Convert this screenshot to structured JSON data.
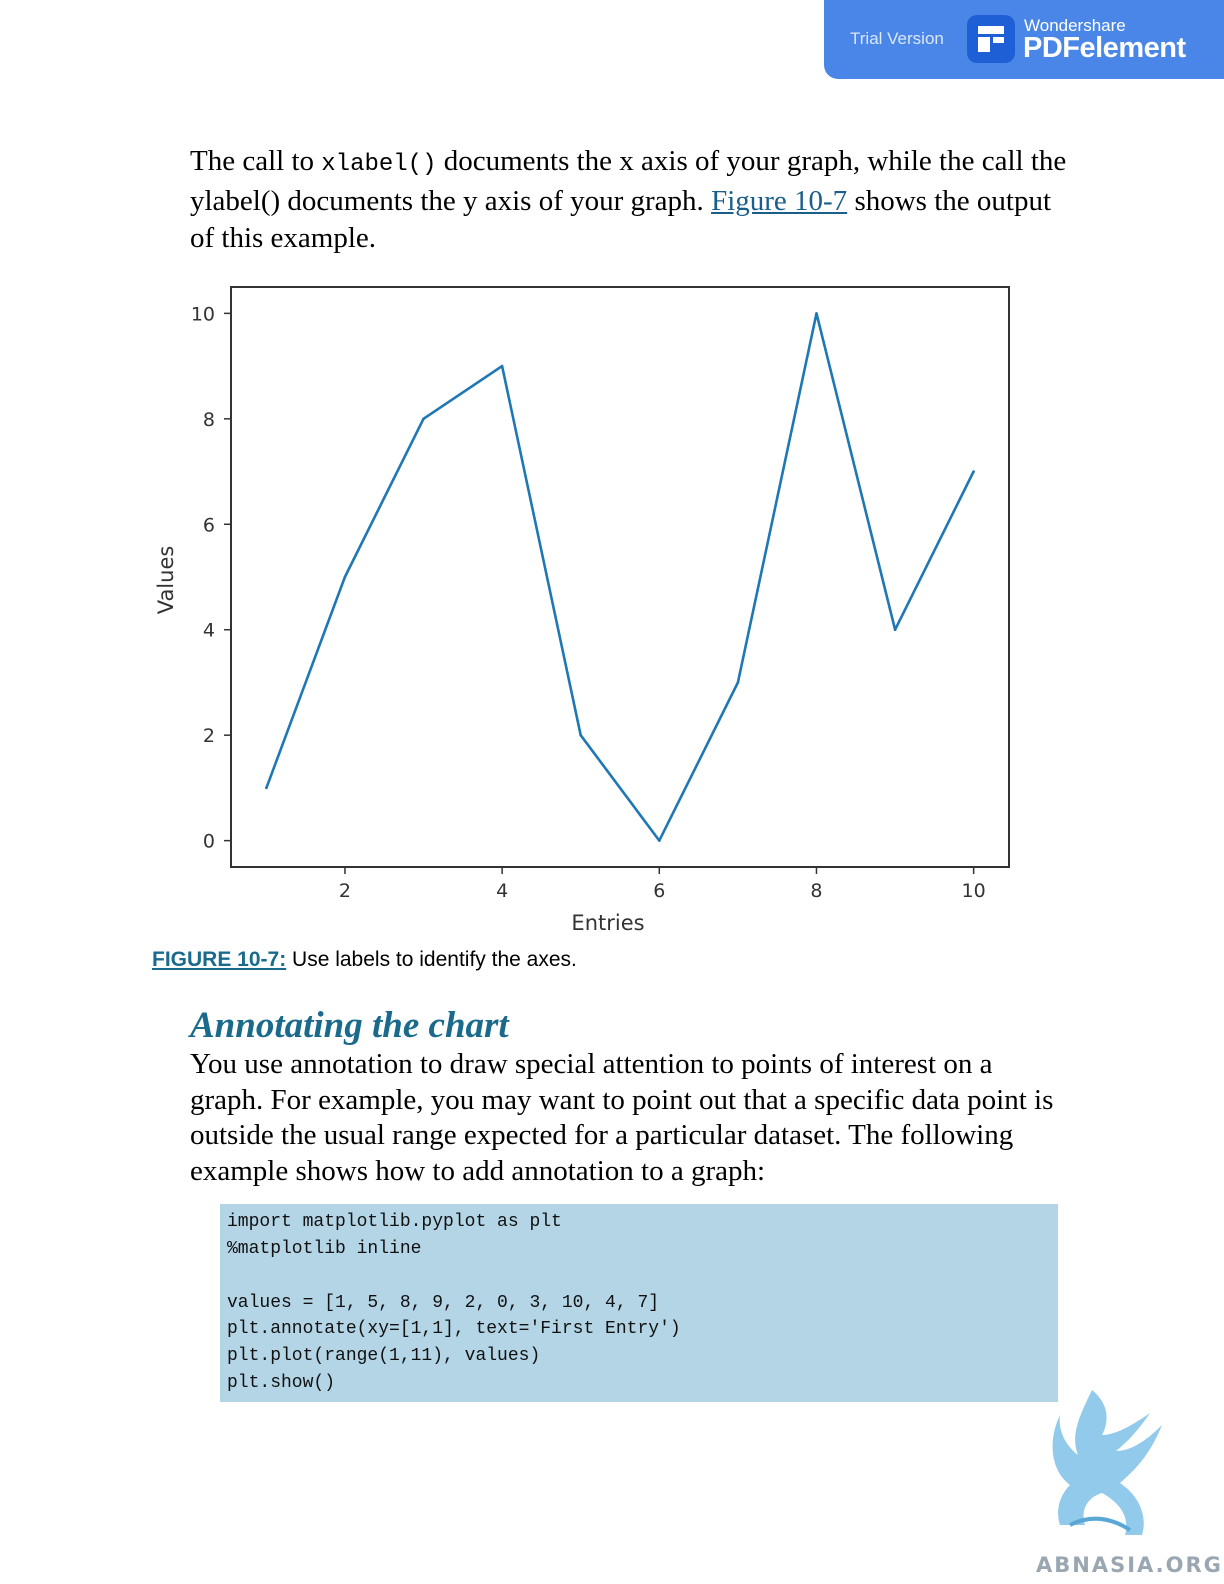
{
  "banner": {
    "trial_text": "Trial Version",
    "brand_small": "Wondershare",
    "brand_big": "PDFelement"
  },
  "intro": {
    "part1": "The call to ",
    "code": "xlabel()",
    "part2": " documents the x axis of your graph, while the call the ylabel() documents the y axis of your graph. ",
    "link": "Figure 10-7",
    "part3": " shows the output of this example."
  },
  "chart_data": {
    "type": "line",
    "x": [
      1,
      2,
      3,
      4,
      5,
      6,
      7,
      8,
      9,
      10
    ],
    "series": [
      {
        "values": [
          1,
          5,
          8,
          9,
          2,
          0,
          3,
          10,
          4,
          7
        ],
        "color": "#1f77b4"
      }
    ],
    "xlabel": "Entries",
    "ylabel": "Values",
    "xticks": [
      2,
      4,
      6,
      8,
      10
    ],
    "yticks": [
      0,
      2,
      4,
      6,
      8,
      10
    ],
    "xlim": [
      0.55,
      10.45
    ],
    "ylim": [
      -0.5,
      10.5
    ],
    "grid": false
  },
  "caption": {
    "label": "FIGURE 10-7:",
    "text": " Use labels to identify the axes."
  },
  "section": {
    "heading": "Annotating the chart",
    "body": "You use annotation to draw special attention to points of interest on a graph. For example, you may want to point out that a specific data point is outside the usual range expected for a particular dataset. The following example shows how to add annotation to a graph:"
  },
  "code": {
    "lines": [
      "import matplotlib.pyplot as plt",
      "%matplotlib inline",
      "",
      "values = [1, 5, 8, 9, 2, 0, 3, 10, 4, 7]",
      "plt.annotate(xy=[1,1], text='First Entry')",
      "plt.plot(range(1,11), values)",
      "plt.show()"
    ]
  },
  "watermark": {
    "text": "ABNASIA.ORG"
  }
}
